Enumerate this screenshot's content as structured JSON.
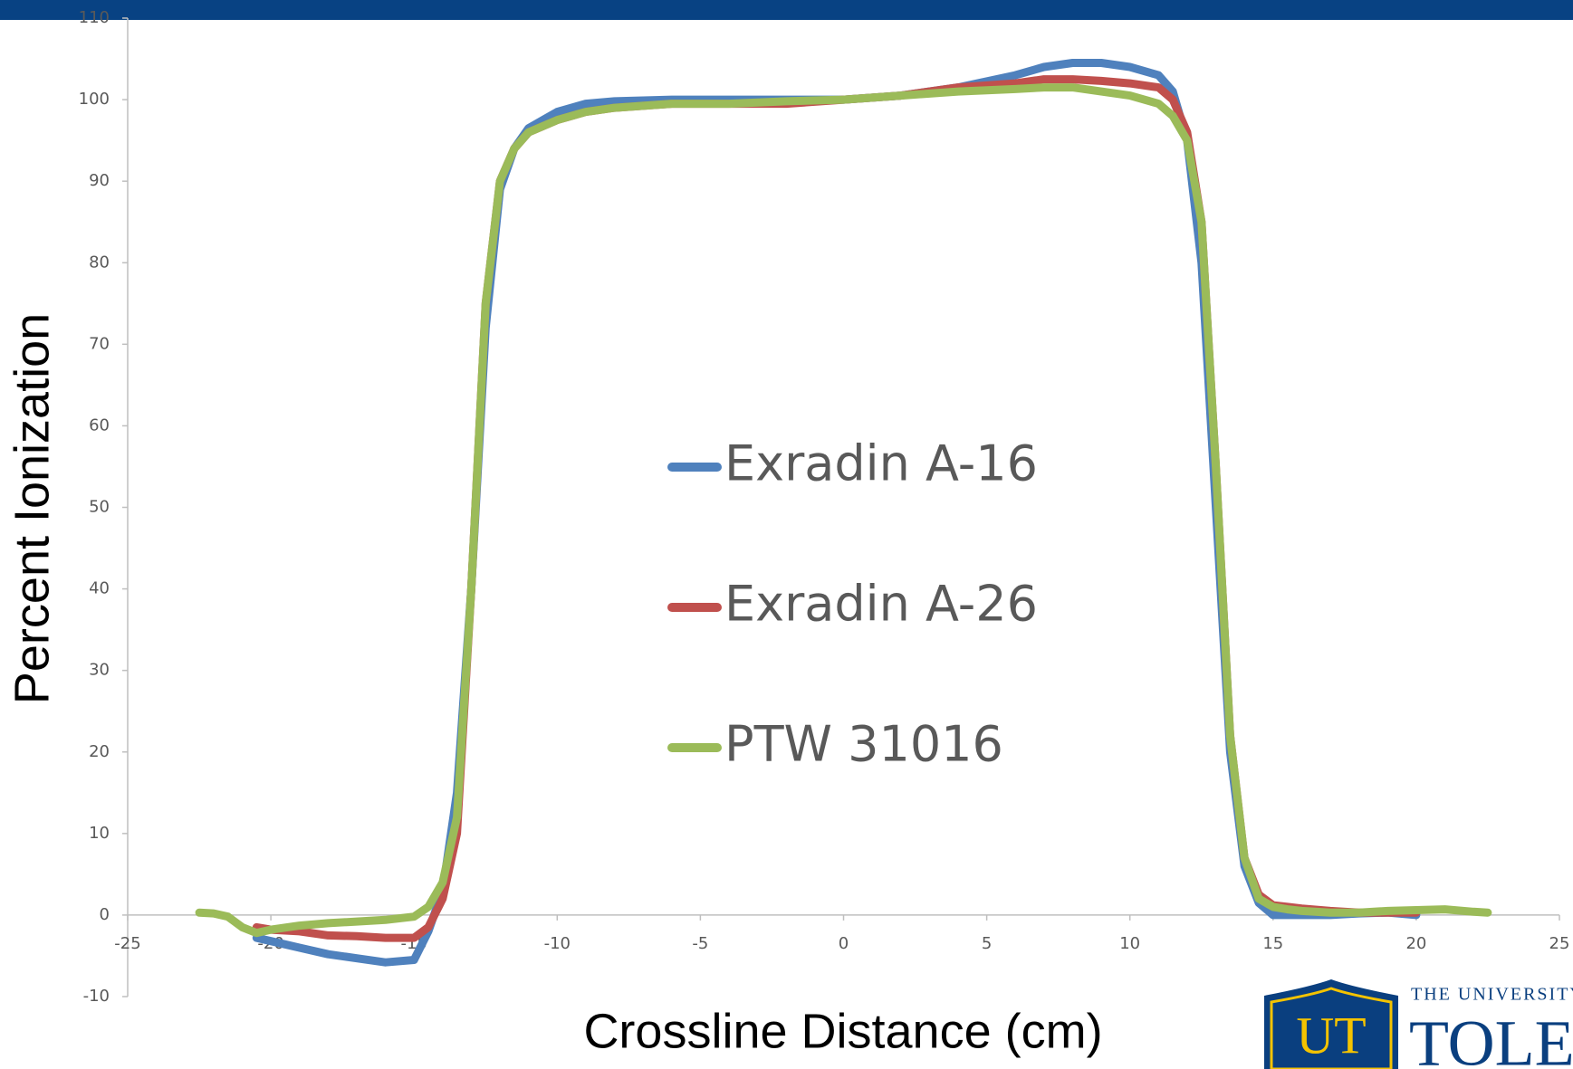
{
  "chart_data": {
    "type": "line",
    "x_label": "Crossline Distance (cm)",
    "y_label": "Percent Ionization",
    "x": [
      -22.5,
      -22,
      -21.5,
      -21,
      -20.5,
      -20,
      -19,
      -18,
      -17,
      -16,
      -15,
      -14.5,
      -14,
      -13.5,
      -13,
      -12.5,
      -12,
      -11.5,
      -11,
      -10,
      -9,
      -8,
      -6,
      -4,
      -2,
      0,
      2,
      4,
      6,
      7,
      8,
      9,
      10,
      11,
      11.5,
      12,
      12.5,
      13,
      13.5,
      14,
      14.5,
      15,
      15.5,
      16,
      17,
      18,
      19,
      20,
      21,
      22,
      22.5
    ],
    "series": [
      {
        "name": "Exradin A-16",
        "color": "#4f81bd",
        "values": [
          null,
          null,
          null,
          null,
          -2.8,
          -3.2,
          -4,
          -4.8,
          -5.3,
          -5.8,
          -5.5,
          -2,
          3,
          15,
          40,
          72,
          89,
          94,
          96.5,
          98.5,
          99.5,
          99.8,
          100,
          100,
          100,
          100,
          100.5,
          101.5,
          103,
          104,
          104.5,
          104.5,
          104,
          103,
          101,
          95,
          80,
          50,
          20,
          6,
          1.5,
          0,
          0,
          0,
          0,
          0.2,
          0.3,
          0,
          null,
          null,
          null
        ]
      },
      {
        "name": "Exradin A-26",
        "color": "#c0504d",
        "values": [
          null,
          null,
          null,
          null,
          -1.5,
          -1.8,
          -2,
          -2.5,
          -2.6,
          -2.8,
          -2.8,
          -1.5,
          2,
          10,
          40,
          75,
          90,
          94,
          96,
          97.5,
          98.5,
          99,
          99.5,
          99.5,
          99.5,
          100,
          100.5,
          101.5,
          102,
          102.5,
          102.5,
          102.3,
          102,
          101.5,
          100,
          96,
          85,
          55,
          22,
          7,
          2.5,
          1.2,
          1,
          0.8,
          0.5,
          0.3,
          0.3,
          0.3,
          null,
          null,
          null
        ]
      },
      {
        "name": "PTW 31016",
        "color": "#9bbb59",
        "values": [
          0.3,
          0.2,
          -0.2,
          -1.5,
          -2.2,
          -1.8,
          -1.3,
          -1,
          -0.8,
          -0.6,
          -0.2,
          1,
          4,
          12,
          40,
          75,
          90,
          94,
          96,
          97.5,
          98.5,
          99,
          99.5,
          99.5,
          99.8,
          100,
          100.5,
          101,
          101.3,
          101.5,
          101.5,
          101,
          100.5,
          99.5,
          98,
          95,
          85,
          55,
          22,
          7,
          2,
          1,
          0.7,
          0.5,
          0.3,
          0.3,
          0.5,
          0.6,
          0.7,
          0.4,
          0.3
        ]
      }
    ],
    "xlim": [
      -25,
      25
    ],
    "xticks": [
      -25,
      -20,
      -15,
      -10,
      -5,
      0,
      5,
      10,
      15,
      20,
      25
    ],
    "ylim": [
      -10,
      110
    ],
    "yticks": [
      -10,
      0,
      10,
      20,
      30,
      40,
      50,
      60,
      70,
      80,
      90,
      100,
      110
    ],
    "legend": "center"
  },
  "logo": {
    "mark": "UT",
    "line1": "THE UNIVERSITY",
    "line2": "TOLEDO"
  }
}
